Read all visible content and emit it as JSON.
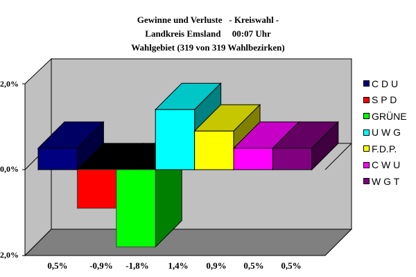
{
  "title": {
    "line1": "Gewinne und Verluste   - Kreiswahl -",
    "line2": "Landkreis Emsland     00:07 Uhr",
    "line3": "Wahlgebiet (319 von 319 Wahlbezirken)"
  },
  "axis": {
    "y_top": "2,0%",
    "y_mid": "0,0%",
    "y_bottom": "2,0%"
  },
  "value_labels": [
    "0,5%",
    "-0,9%",
    "-1,8%",
    "1,4%",
    "0,9%",
    "0,5%",
    "0,5%"
  ],
  "legend": [
    {
      "label": "C D U",
      "color": "#000080"
    },
    {
      "label": "S P D",
      "color": "#ff0000"
    },
    {
      "label": "GRÜNE",
      "color": "#00ff00"
    },
    {
      "label": "U W G",
      "color": "#00ffff"
    },
    {
      "label": "F.D.P.",
      "color": "#ffff00"
    },
    {
      "label": "C W U",
      "color": "#ff00ff"
    },
    {
      "label": "W G T",
      "color": "#800080"
    }
  ],
  "chart_data": {
    "type": "bar",
    "style": "3d-column",
    "title": "Gewinne und Verluste - Kreiswahl - Landkreis Emsland 00:07 Uhr Wahlgebiet (319 von 319 Wahlbezirken)",
    "categories": [
      "C D U",
      "S P D",
      "GRÜNE",
      "U W G",
      "F.D.P.",
      "C W U",
      "W G T"
    ],
    "values": [
      0.5,
      -0.9,
      -1.8,
      1.4,
      0.9,
      0.5,
      0.5
    ],
    "value_labels": [
      "0,5%",
      "-0,9%",
      "-1,8%",
      "1,4%",
      "0,9%",
      "0,5%",
      "0,5%"
    ],
    "colors": [
      "#000080",
      "#ff0000",
      "#00ff00",
      "#00ffff",
      "#ffff00",
      "#ff00ff",
      "#800080"
    ],
    "ylabel": "",
    "xlabel": "",
    "yticks": [
      "2,0%",
      "0,0%",
      "2,0%"
    ],
    "ylim": [
      -2.0,
      2.0
    ],
    "grid": false,
    "legend_position": "right"
  }
}
